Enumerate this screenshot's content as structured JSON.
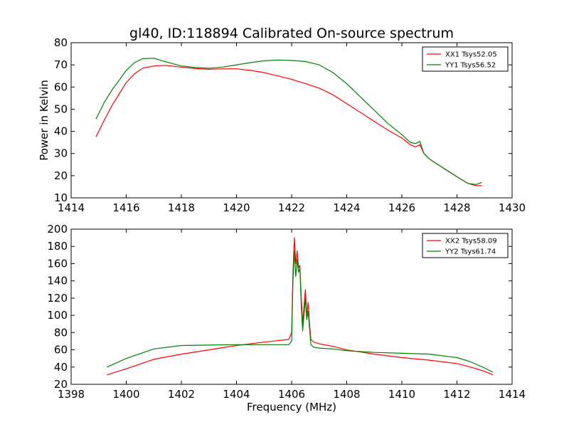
{
  "colors": {
    "xx": "#ff0000",
    "yy": "#008000"
  },
  "chart_data": [
    {
      "type": "line",
      "title": "gl40, ID:118894 Calibrated On-source spectrum",
      "xlabel": "",
      "ylabel": "Power in Kelvin",
      "xlim": [
        1414,
        1430
      ],
      "ylim": [
        10,
        80
      ],
      "xticks": [
        1414,
        1416,
        1418,
        1420,
        1422,
        1424,
        1426,
        1428,
        1430
      ],
      "yticks": [
        10,
        20,
        30,
        40,
        50,
        60,
        70,
        80
      ],
      "legend_position": "top-right",
      "series": [
        {
          "name": "XX1 Tsys52.05",
          "color": "#ff0000",
          "x": [
            1414.9,
            1415.2,
            1415.5,
            1415.8,
            1416.0,
            1416.3,
            1416.6,
            1417.0,
            1417.4,
            1418.0,
            1418.5,
            1419.0,
            1419.5,
            1420.0,
            1420.5,
            1421.0,
            1421.5,
            1422.0,
            1422.5,
            1423.0,
            1423.5,
            1424.0,
            1424.5,
            1425.0,
            1425.5,
            1426.0,
            1426.3,
            1426.5,
            1426.65,
            1426.8,
            1427.0,
            1427.5,
            1428.0,
            1428.4,
            1428.7,
            1428.9
          ],
          "values": [
            37.5,
            45,
            52,
            58,
            62,
            66,
            68.5,
            69.5,
            69.8,
            69,
            68.3,
            68,
            68.2,
            68.2,
            67.5,
            66.5,
            65,
            63.5,
            61.5,
            59.5,
            56.5,
            52.5,
            48.5,
            44.5,
            40.5,
            37,
            34,
            33,
            34,
            30,
            27.5,
            23.5,
            19.5,
            16.5,
            15.5,
            15.5
          ]
        },
        {
          "name": "YY1 Tsys56.52",
          "color": "#008000",
          "x": [
            1414.9,
            1415.2,
            1415.5,
            1415.8,
            1416.0,
            1416.3,
            1416.6,
            1417.0,
            1417.4,
            1418.0,
            1418.5,
            1419.0,
            1419.5,
            1420.0,
            1420.5,
            1421.0,
            1421.5,
            1422.0,
            1422.5,
            1423.0,
            1423.5,
            1424.0,
            1424.5,
            1425.0,
            1425.5,
            1426.0,
            1426.3,
            1426.5,
            1426.65,
            1426.8,
            1427.0,
            1427.5,
            1428.0,
            1428.4,
            1428.7,
            1428.9
          ],
          "values": [
            45.5,
            53,
            59,
            64,
            67.5,
            71,
            72.8,
            73,
            71.5,
            69.5,
            68.8,
            68.5,
            69,
            70,
            71,
            71.8,
            72.2,
            72,
            71.5,
            70,
            66.5,
            61.5,
            55.5,
            49.5,
            43.5,
            38.5,
            35,
            34.5,
            35.5,
            30,
            27.5,
            23.5,
            19.5,
            16.5,
            16,
            17
          ]
        }
      ]
    },
    {
      "type": "line",
      "title": "",
      "xlabel": "Frequency (MHz)",
      "ylabel": "",
      "xlim": [
        1398,
        1414
      ],
      "ylim": [
        20,
        200
      ],
      "xticks": [
        1398,
        1400,
        1402,
        1404,
        1406,
        1408,
        1410,
        1412,
        1414
      ],
      "yticks": [
        20,
        40,
        60,
        80,
        100,
        120,
        140,
        160,
        180,
        200
      ],
      "legend_position": "top-right",
      "series": [
        {
          "name": "XX2 Tsys58.09",
          "color": "#ff0000",
          "x": [
            1399.3,
            1400.0,
            1401.0,
            1402.0,
            1403.0,
            1404.0,
            1405.0,
            1405.9,
            1406.0,
            1406.05,
            1406.1,
            1406.15,
            1406.2,
            1406.25,
            1406.3,
            1406.35,
            1406.4,
            1406.45,
            1406.5,
            1406.55,
            1406.6,
            1406.65,
            1406.7,
            1406.8,
            1407.0,
            1407.5,
            1408.0,
            1409.0,
            1410.0,
            1411.0,
            1412.0,
            1412.5,
            1413.0,
            1413.3
          ],
          "values": [
            31,
            38,
            49,
            55,
            60,
            65,
            69,
            72,
            80,
            150,
            190,
            160,
            175,
            155,
            158,
            120,
            90,
            110,
            130,
            100,
            115,
            90,
            72,
            69,
            67,
            64,
            60,
            55,
            51,
            48,
            44,
            40,
            35,
            31
          ]
        },
        {
          "name": "YY2 Tsys61.74",
          "color": "#008000",
          "x": [
            1399.3,
            1400.0,
            1401.0,
            1402.0,
            1403.0,
            1404.0,
            1405.0,
            1405.9,
            1406.0,
            1406.05,
            1406.1,
            1406.15,
            1406.2,
            1406.25,
            1406.3,
            1406.35,
            1406.4,
            1406.45,
            1406.5,
            1406.55,
            1406.6,
            1406.65,
            1406.7,
            1406.8,
            1407.0,
            1407.5,
            1408.0,
            1409.0,
            1410.0,
            1411.0,
            1412.0,
            1412.5,
            1413.0,
            1413.3
          ],
          "values": [
            40,
            50,
            61,
            65,
            65.5,
            66,
            66,
            66,
            70,
            140,
            175,
            145,
            165,
            150,
            155,
            110,
            82,
            100,
            120,
            95,
            105,
            85,
            66,
            63,
            62,
            61,
            59,
            57,
            56,
            55,
            51,
            46,
            39,
            34
          ]
        }
      ]
    }
  ]
}
